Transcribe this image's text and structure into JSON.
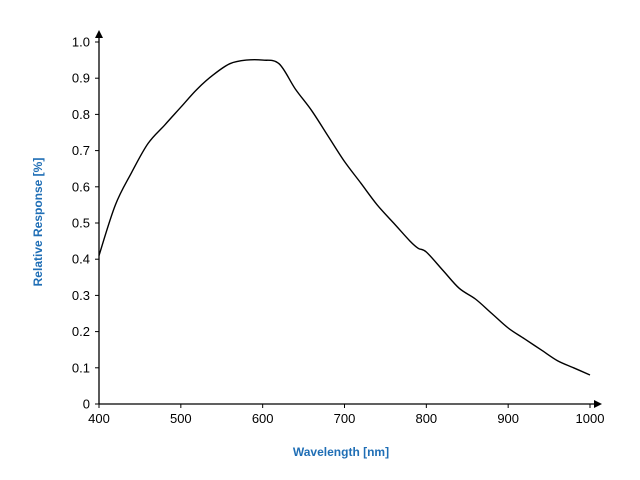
{
  "chart_data": {
    "type": "line",
    "title": "",
    "xlabel": "Wavelength [nm]",
    "ylabel": "Relative Response [%]",
    "xlim": [
      400,
      1000
    ],
    "ylim": [
      0,
      1.0
    ],
    "xticks": [
      400,
      500,
      600,
      700,
      800,
      900,
      1000
    ],
    "yticks": [
      0,
      0.1,
      0.2,
      0.3,
      0.4,
      0.5,
      0.6,
      0.7,
      0.8,
      0.9,
      1.0
    ],
    "xtick_labels": [
      "400",
      "500",
      "600",
      "700",
      "800",
      "900",
      "1000"
    ],
    "ytick_labels": [
      "0",
      "0.1",
      "0.2",
      "0.3",
      "0.4",
      "0.5",
      "0.6",
      "0.7",
      "0.8",
      "0.9",
      "1.0"
    ],
    "grid": false,
    "label_color": "#1f6eb5",
    "line_color": "#000000",
    "series": [
      {
        "x": [
          400,
          420,
          440,
          460,
          480,
          500,
          520,
          540,
          560,
          580,
          600,
          620,
          640,
          660,
          680,
          700,
          720,
          740,
          760,
          780,
          790,
          800,
          820,
          840,
          860,
          880,
          900,
          920,
          940,
          960,
          980,
          1000
        ],
        "y": [
          0.41,
          0.55,
          0.64,
          0.72,
          0.77,
          0.82,
          0.87,
          0.91,
          0.94,
          0.95,
          0.95,
          0.94,
          0.87,
          0.81,
          0.74,
          0.67,
          0.61,
          0.55,
          0.5,
          0.45,
          0.43,
          0.42,
          0.37,
          0.32,
          0.29,
          0.25,
          0.21,
          0.18,
          0.15,
          0.12,
          0.1,
          0.08
        ]
      }
    ]
  }
}
